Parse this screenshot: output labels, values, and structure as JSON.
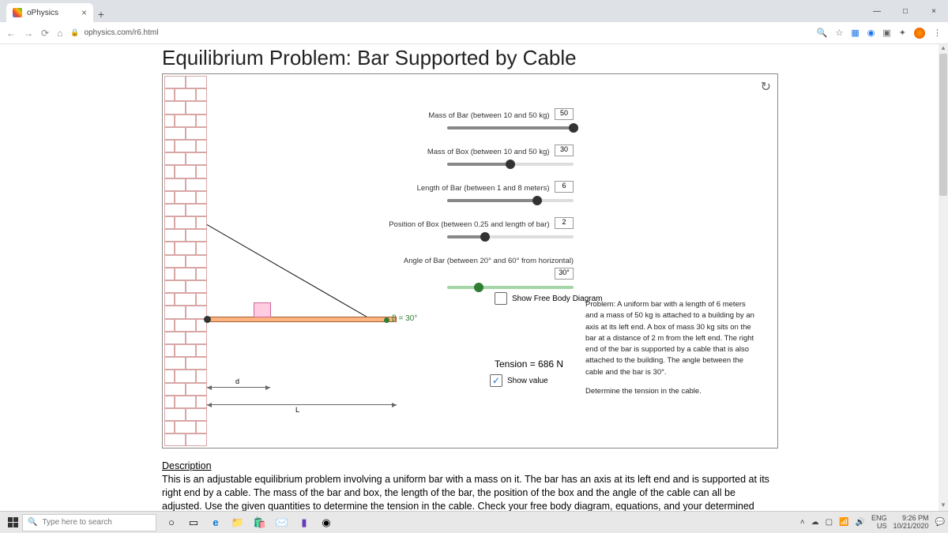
{
  "browser": {
    "tab_title": "oPhysics",
    "url": "ophysics.com/r6.html",
    "new_tab": "+",
    "close": "×",
    "win_min": "—",
    "win_max": "□",
    "win_close": "×"
  },
  "page": {
    "title": "Equilibrium Problem: Bar Supported by Cable",
    "reset": "↻"
  },
  "sliders": {
    "mass_bar": {
      "label": "Mass of Bar (between 10 and 50 kg)",
      "value": "50",
      "min": 10,
      "max": 50,
      "pct": 100
    },
    "mass_box": {
      "label": "Mass of Box (between 10 and 50 kg)",
      "value": "30",
      "min": 10,
      "max": 50,
      "pct": 50
    },
    "length_bar": {
      "label": "Length of Bar (between 1 and 8 meters)",
      "value": "6",
      "min": 1,
      "max": 8,
      "pct": 71
    },
    "pos_box": {
      "label": "Position of Box (between 0.25 and length of bar)",
      "value": "2",
      "min": 0.25,
      "max": 6,
      "pct": 30
    },
    "angle": {
      "label": "Angle of Bar (between 20° and 60° from horizontal)",
      "value": "30°",
      "min": 20,
      "max": 60,
      "pct": 25
    }
  },
  "diagram": {
    "beta": "β = 30°",
    "d_label": "d",
    "L_label": "L",
    "bar_color": "#ffb380",
    "box_color": "#ffcce0",
    "wall_line_color": "#d9a6a6"
  },
  "fbd": {
    "label": "Show Free Body Diagram",
    "checked": false
  },
  "tension": {
    "text": "Tension = 686 N"
  },
  "showval": {
    "label": "Show value",
    "checked": true,
    "mark": "✓"
  },
  "problem": {
    "p1": "Problem: A uniform bar with a length of 6 meters and a mass of 50 kg is attached to a building by an axis at its left end. A box of mass 30 kg sits on the bar at a distance of 2 m from the left end. The right end of the bar is supported by a cable that is also attached to the building. The angle between the cable and the bar is 30°.",
    "p2": "Determine the tension in the cable."
  },
  "description": {
    "heading": "Description",
    "body": "This is an adjustable equilibrium problem involving a uniform bar with a mass on it. The bar has an axis at its left end and is supported at its right end by a cable. The mass of the bar and box, the length of the bar, the position of the box and the angle of the cable can all be adjusted. Use the given quantities to determine the tension in the cable. Check your free body diagram, equations, and your determined tension."
  },
  "taskbar": {
    "search_placeholder": "Type here to search",
    "lang": "ENG",
    "region": "US",
    "time": "9:26 PM",
    "date": "10/21/2020"
  }
}
